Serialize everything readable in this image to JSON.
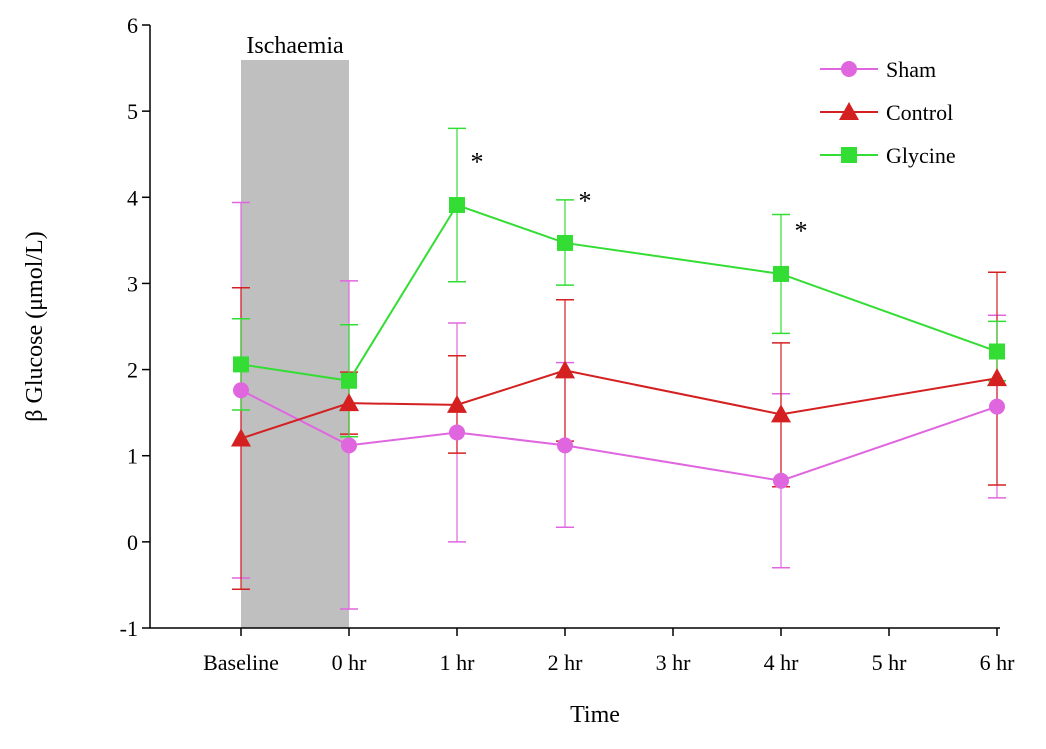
{
  "chart_data": {
    "type": "line",
    "xlabel": "Time",
    "ylabel": "β Glucose (μmol/L)",
    "ylim": [
      -1,
      6
    ],
    "yticks": [
      -1,
      0,
      1,
      2,
      3,
      4,
      5,
      6
    ],
    "categories": [
      "Baseline",
      "0 hr",
      "1 hr",
      "2 hr",
      "3 hr",
      "4 hr",
      "5 hr",
      "6 hr"
    ],
    "shaded_region": {
      "label": "Ischaemia",
      "from": "Baseline",
      "to": "0 hr",
      "color": "#bfbfbf"
    },
    "legend_position": "top-right",
    "grid": false,
    "series": [
      {
        "name": "Sham",
        "color": "#e066e0",
        "marker": "circle",
        "points": [
          {
            "x": "Baseline",
            "y": 1.76,
            "err_low": -0.42,
            "err_high": 3.94
          },
          {
            "x": "0 hr",
            "y": 1.12,
            "err_low": -0.78,
            "err_high": 3.03
          },
          {
            "x": "1 hr",
            "y": 1.27,
            "err_low": 0.0,
            "err_high": 2.54
          },
          {
            "x": "2 hr",
            "y": 1.12,
            "err_low": 0.17,
            "err_high": 2.08
          },
          {
            "x": "4 hr",
            "y": 0.71,
            "err_low": -0.3,
            "err_high": 1.72
          },
          {
            "x": "6 hr",
            "y": 1.57,
            "err_low": 0.51,
            "err_high": 2.63
          }
        ]
      },
      {
        "name": "Control",
        "color": "#d42020",
        "marker": "triangle",
        "points": [
          {
            "x": "Baseline",
            "y": 1.2,
            "err_low": -0.55,
            "err_high": 2.95
          },
          {
            "x": "0 hr",
            "y": 1.61,
            "err_low": 1.25,
            "err_high": 1.97
          },
          {
            "x": "1 hr",
            "y": 1.59,
            "err_low": 1.03,
            "err_high": 2.16
          },
          {
            "x": "2 hr",
            "y": 1.99,
            "err_low": 1.17,
            "err_high": 2.81
          },
          {
            "x": "4 hr",
            "y": 1.48,
            "err_low": 0.64,
            "err_high": 2.31
          },
          {
            "x": "6 hr",
            "y": 1.9,
            "err_low": 0.66,
            "err_high": 3.13
          }
        ]
      },
      {
        "name": "Glycine",
        "color": "#33dd33",
        "marker": "square",
        "points": [
          {
            "x": "Baseline",
            "y": 2.06,
            "err_low": 1.53,
            "err_high": 2.59
          },
          {
            "x": "0 hr",
            "y": 1.87,
            "err_low": 1.22,
            "err_high": 2.52
          },
          {
            "x": "1 hr",
            "y": 3.91,
            "err_low": 3.02,
            "err_high": 4.8
          },
          {
            "x": "2 hr",
            "y": 3.47,
            "err_low": 2.98,
            "err_high": 3.97
          },
          {
            "x": "4 hr",
            "y": 3.11,
            "err_low": 2.42,
            "err_high": 3.8
          },
          {
            "x": "6 hr",
            "y": 2.21,
            "err_low": 1.87,
            "err_high": 2.56
          }
        ]
      }
    ],
    "annotations": [
      {
        "text": "*",
        "x": "1 hr",
        "y": 4.45
      },
      {
        "text": "*",
        "x": "2 hr",
        "y": 4.0
      },
      {
        "text": "*",
        "x": "4 hr",
        "y": 3.65
      }
    ]
  }
}
